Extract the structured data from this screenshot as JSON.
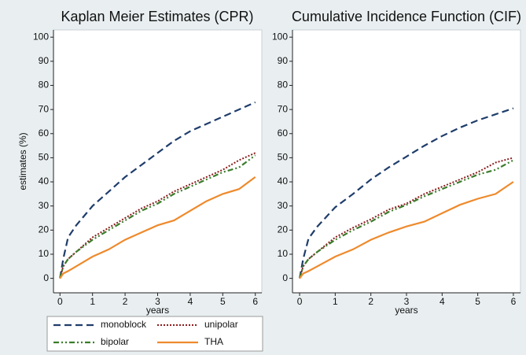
{
  "chart_data": [
    {
      "type": "line",
      "title": "Kaplan Meier Estimates (CPR)",
      "xlabel": "years",
      "ylabel": "estimates (%)",
      "x": [
        0,
        0.1,
        0.25,
        0.5,
        1,
        1.5,
        2,
        2.5,
        3,
        3.5,
        4,
        4.5,
        5,
        5.5,
        6
      ],
      "xlim": [
        -0.2,
        6.2
      ],
      "xticks": [
        0,
        1,
        2,
        3,
        4,
        5,
        6
      ],
      "ylim": [
        -6,
        103
      ],
      "yticks": [
        0,
        10,
        20,
        30,
        40,
        50,
        60,
        70,
        80,
        90,
        100
      ],
      "legend": "bottom",
      "series": [
        {
          "name": "monoblock",
          "color": "#1f3d6b",
          "values": [
            0,
            8,
            17,
            22,
            30,
            36,
            42,
            47,
            52,
            57,
            61,
            64,
            67,
            70,
            73
          ]
        },
        {
          "name": "unipolar",
          "color": "#8b1c1c",
          "values": [
            0,
            5,
            8,
            11,
            17,
            21,
            25,
            29,
            32,
            36,
            39,
            42,
            45,
            49,
            52
          ]
        },
        {
          "name": "bipolar",
          "color": "#3b7d2c",
          "values": [
            0,
            5,
            8,
            11,
            16,
            20,
            24,
            28,
            31,
            35,
            38,
            41,
            44,
            46,
            51
          ]
        },
        {
          "name": "THA",
          "color": "#ee8a2c",
          "values": [
            0,
            2,
            3,
            5,
            9,
            12,
            16,
            19,
            22,
            24,
            28,
            32,
            35,
            37,
            42
          ]
        }
      ]
    },
    {
      "type": "line",
      "title": "Cumulative Incidence Function (CIF)",
      "xlabel": "years",
      "x": [
        0,
        0.1,
        0.25,
        0.5,
        1,
        1.5,
        2,
        2.5,
        3,
        3.5,
        4,
        4.5,
        5,
        5.5,
        6
      ],
      "xlim": [
        -0.2,
        6.2
      ],
      "xticks": [
        0,
        1,
        2,
        3,
        4,
        5,
        6
      ],
      "ylim": [
        -6,
        103
      ],
      "yticks": [
        0,
        10,
        20,
        30,
        40,
        50,
        60,
        70,
        80,
        90,
        100
      ],
      "series": [
        {
          "color": "#1f3d6b",
          "values": [
            0,
            8,
            16.5,
            21.5,
            29.5,
            35,
            41,
            46,
            50.5,
            55,
            59,
            62.5,
            65.5,
            68,
            70.5
          ]
        },
        {
          "color": "#8b1c1c",
          "values": [
            0,
            5,
            8,
            11,
            17,
            21,
            24.5,
            28.5,
            31,
            35,
            38,
            41,
            44,
            48,
            50
          ]
        },
        {
          "color": "#3b7d2c",
          "values": [
            0,
            5,
            8,
            11,
            16,
            20,
            23.5,
            27.5,
            30.5,
            34,
            37,
            40,
            43,
            45,
            49
          ]
        },
        {
          "color": "#ee8a2c",
          "values": [
            0,
            2,
            3,
            5,
            9,
            12,
            16,
            19,
            21.5,
            23.5,
            27,
            30.5,
            33,
            35,
            40
          ]
        }
      ]
    }
  ]
}
